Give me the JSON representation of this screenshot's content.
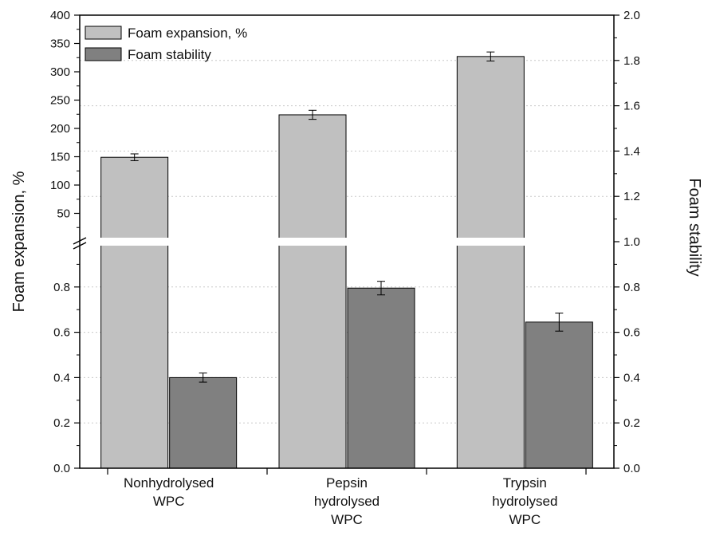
{
  "chart_data": {
    "type": "bar",
    "categories": [
      [
        "Nonhydrolysed",
        "WPC"
      ],
      [
        "Pepsin",
        "hydrolysed",
        "WPC"
      ],
      [
        "Trypsin",
        "hydrolysed",
        "WPC"
      ]
    ],
    "series": [
      {
        "name": "Foam expansion, %",
        "axis": "left",
        "values": [
          149,
          224,
          327
        ],
        "errors": [
          6,
          8,
          8
        ],
        "color": "#c0c0c0"
      },
      {
        "name": "Foam stability",
        "axis": "right",
        "values": [
          0.4,
          0.795,
          0.645
        ],
        "errors": [
          0.02,
          0.03,
          0.04
        ],
        "color": "#808080"
      }
    ],
    "ylabel_left": "Foam expansion, %",
    "ylabel_right": "Foam stability",
    "left_axis": {
      "broken": true,
      "lower_range": [
        0,
        1.0
      ],
      "upper_range": [
        0,
        400
      ],
      "lower_ticks": [
        "0.0",
        "0.2",
        "0.4",
        "0.6",
        "0.8"
      ],
      "upper_ticks": [
        "50",
        "100",
        "150",
        "200",
        "250",
        "300",
        "350",
        "400"
      ]
    },
    "right_axis": {
      "range": [
        0,
        2.0
      ],
      "ticks": [
        "0.0",
        "0.2",
        "0.4",
        "0.6",
        "0.8",
        "1.0",
        "1.2",
        "1.4",
        "1.6",
        "1.8",
        "2.0"
      ]
    },
    "legend_position": "top-left",
    "grid": "horizontal dotted"
  }
}
